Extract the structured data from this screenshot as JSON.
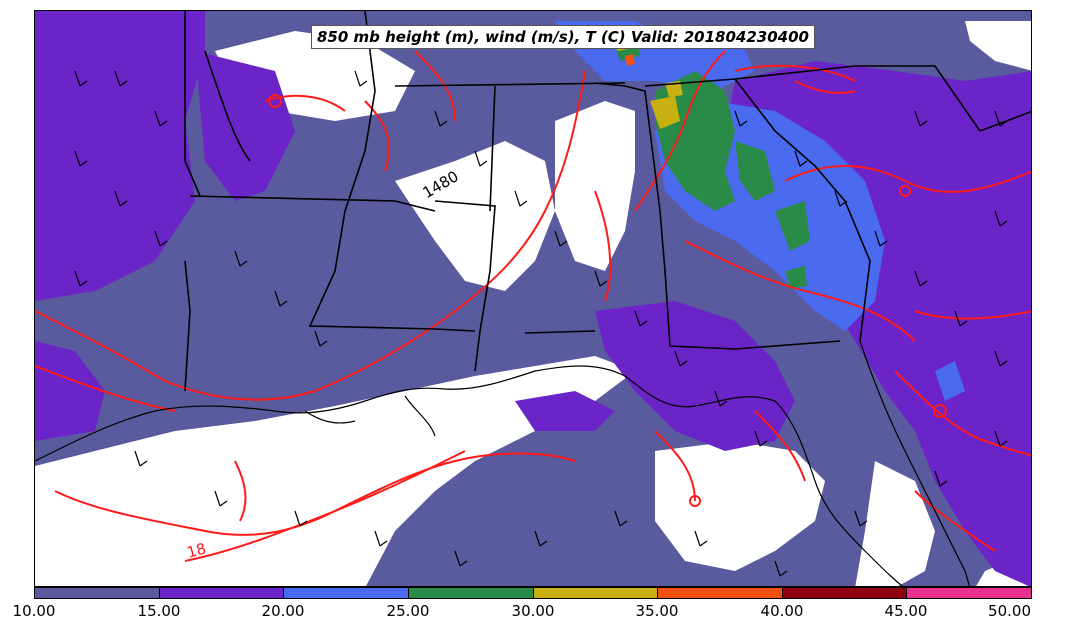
{
  "title": "850 mb height (m), wind (m/s), T (C) Valid: 201804230400",
  "contour_labels": [
    "1480",
    "18"
  ],
  "colorbar": {
    "tick_labels": [
      "10.00",
      "15.00",
      "20.00",
      "25.00",
      "30.00",
      "35.00",
      "40.00",
      "45.00",
      "50.00"
    ],
    "colors": [
      "#5a5a9e",
      "#6a24c8",
      "#4a6af0",
      "#2a8a48",
      "#c8b010",
      "#f05010",
      "#900010",
      "#e83090"
    ]
  },
  "colors": {
    "wind_10_15": "#5a5a9e",
    "wind_15_20": "#6a24c8",
    "wind_20_25": "#4a6af0",
    "wind_25_30": "#2a8a48",
    "wind_30_35": "#c8b010",
    "temperature_contour": "#ff1a1a",
    "borders": "#000000"
  }
}
